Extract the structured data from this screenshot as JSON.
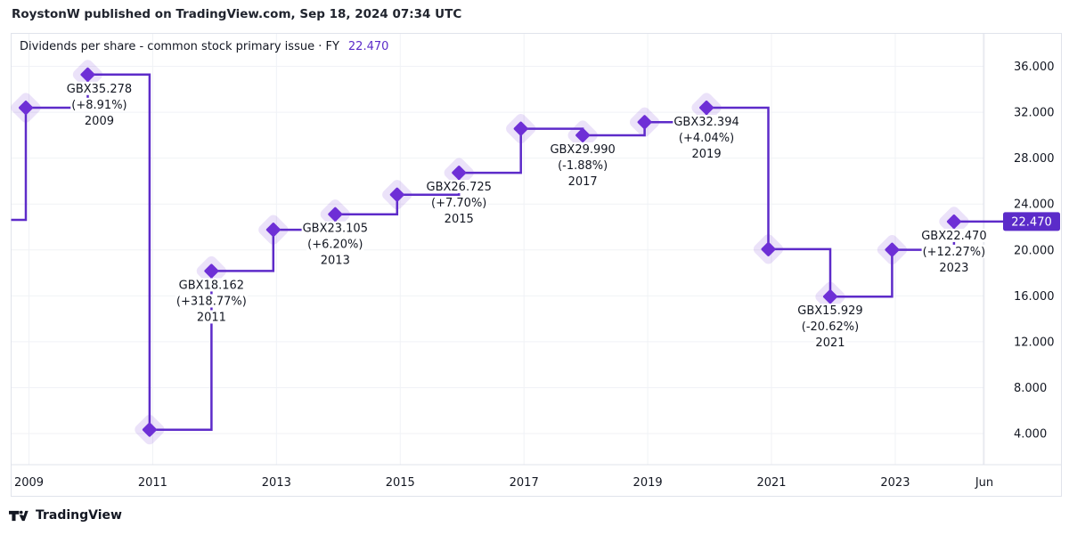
{
  "header": {
    "attribution": "RoystonW published on TradingView.com, Sep 18, 2024 07:34 UTC"
  },
  "chart": {
    "title": "Dividends per share - common stock primary issue · FY",
    "current_value": "22.470",
    "colors": {
      "line": "#5d2bc9",
      "marker": "#6e2fd6",
      "marker_halo": "rgba(110,47,214,0.14)",
      "badge_bg": "#5b2bc9",
      "badge_text": "#ffffff",
      "value_text": "#5b2bc9",
      "text": "#131722",
      "grid": "#f0f2f6",
      "axis_border": "#e0e3eb"
    }
  },
  "chart_data": {
    "type": "line",
    "step": true,
    "unit": "GBX",
    "title": "Dividends per share - common stock primary issue · FY",
    "legend_position": "top-left",
    "grid": true,
    "ylim": [
      4,
      36
    ],
    "y_ticks": [
      "36.000",
      "32.000",
      "28.000",
      "24.000",
      "20.000",
      "16.000",
      "12.000",
      "8.000",
      "4.000"
    ],
    "x_ticks": [
      "2009",
      "2011",
      "2013",
      "2015",
      "2017",
      "2019",
      "2021",
      "2023",
      "Jun"
    ],
    "lead_in_value": 22.62,
    "points": [
      {
        "fiscal_year": 2008,
        "value": 32.392,
        "annotation": null
      },
      {
        "fiscal_year": 2009,
        "value": 35.278,
        "annotation": {
          "value_label": "GBX35.278",
          "change_label": "(+8.91%)",
          "year_label": "2009",
          "dx": 13
        }
      },
      {
        "fiscal_year": 2010,
        "value": 4.336,
        "annotation": null
      },
      {
        "fiscal_year": 2011,
        "value": 18.162,
        "annotation": {
          "value_label": "GBX18.162",
          "change_label": "(+318.77%)",
          "year_label": "2011",
          "dx": 0
        }
      },
      {
        "fiscal_year": 2012,
        "value": 21.756,
        "annotation": null
      },
      {
        "fiscal_year": 2013,
        "value": 23.105,
        "annotation": {
          "value_label": "GBX23.105",
          "change_label": "(+6.20%)",
          "year_label": "2013",
          "dx": 0
        }
      },
      {
        "fiscal_year": 2014,
        "value": 24.814,
        "annotation": null
      },
      {
        "fiscal_year": 2015,
        "value": 26.725,
        "annotation": {
          "value_label": "GBX26.725",
          "change_label": "(+7.70%)",
          "year_label": "2015",
          "dx": 0
        }
      },
      {
        "fiscal_year": 2016,
        "value": 30.565,
        "annotation": null
      },
      {
        "fiscal_year": 2017,
        "value": 29.99,
        "annotation": {
          "value_label": "GBX29.990",
          "change_label": "(-1.88%)",
          "year_label": "2017",
          "dx": 0
        }
      },
      {
        "fiscal_year": 2018,
        "value": 31.136,
        "annotation": null
      },
      {
        "fiscal_year": 2019,
        "value": 32.394,
        "annotation": {
          "value_label": "GBX32.394",
          "change_label": "(+4.04%)",
          "year_label": "2019",
          "dx": 0
        }
      },
      {
        "fiscal_year": 2020,
        "value": 20.067,
        "annotation": null
      },
      {
        "fiscal_year": 2021,
        "value": 15.929,
        "annotation": {
          "value_label": "GBX15.929",
          "change_label": "(-20.62%)",
          "year_label": "2021",
          "dx": 0
        }
      },
      {
        "fiscal_year": 2022,
        "value": 20.014,
        "annotation": null
      },
      {
        "fiscal_year": 2023,
        "value": 22.47,
        "annotation": {
          "value_label": "GBX22.470",
          "change_label": "(+12.27%)",
          "year_label": "2023",
          "dx": 0
        }
      }
    ],
    "last_value_badge": "22.470"
  },
  "watermark": {
    "text": "TradingView"
  }
}
